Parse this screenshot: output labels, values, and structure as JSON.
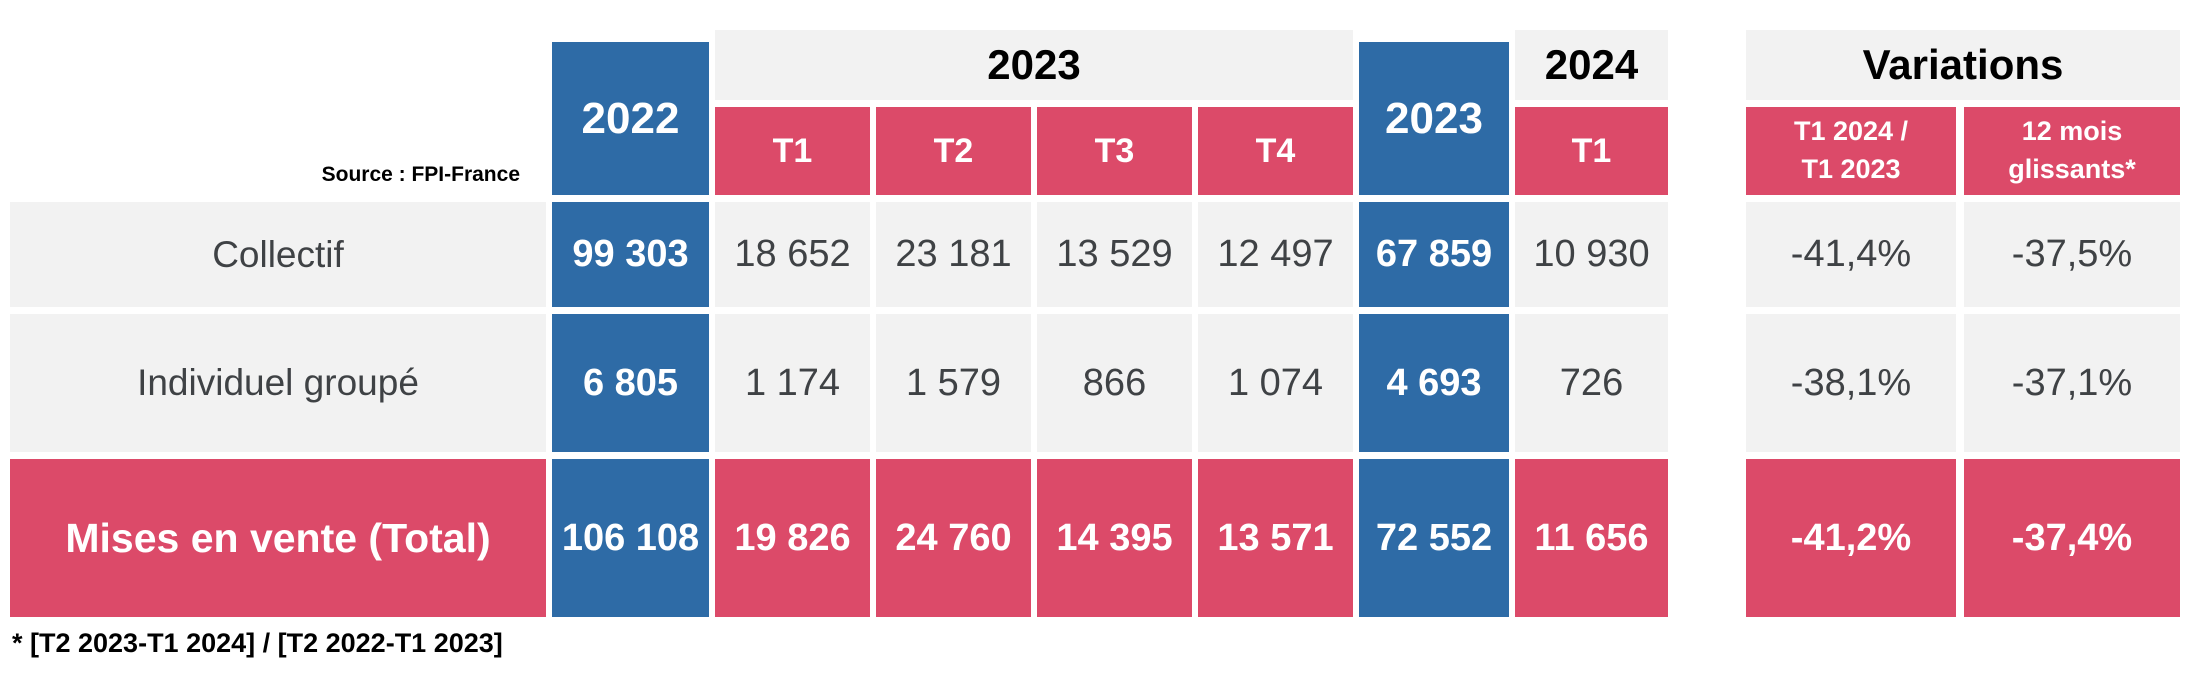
{
  "colors": {
    "blue": "#2E6BA6",
    "red": "#DC4A69",
    "cell_gray": "#F2F2F2",
    "text_dark": "#3F4245"
  },
  "source_label": "Source : FPI-France",
  "footnote": "* [T2 2023-T1 2024] / [T2 2022-T1 2023]",
  "header": {
    "year_2022": "2022",
    "year_2023_group": "2023",
    "year_2023_total": "2023",
    "year_2024": "2024",
    "quarters": [
      "T1",
      "T2",
      "T3",
      "T4"
    ],
    "t1_2024": "T1",
    "variations_title": "Variations",
    "variation_col_1": "T1 2024  /\nT1 2023",
    "variation_col_2": "12 mois\nglissants*"
  },
  "rows": [
    {
      "label": "Collectif",
      "v": [
        "99 303",
        "18 652",
        "23 181",
        "13 529",
        "12 497",
        "67 859",
        "10 930",
        "-41,4%",
        "-37,5%"
      ]
    },
    {
      "label": "Individuel groupé",
      "v": [
        "6 805",
        "1 174",
        "1 579",
        "866",
        "1 074",
        "4 693",
        "726",
        "-38,1%",
        "-37,1%"
      ]
    },
    {
      "label": "Mises en vente (Total)",
      "v": [
        "106 108",
        "19 826",
        "24 760",
        "14 395",
        "13 571",
        "72 552",
        "11 656",
        "-41,2%",
        "-37,4%"
      ]
    }
  ],
  "chart_data": {
    "type": "table",
    "source": "Source : FPI-France",
    "footnote": "* [T2 2023-T1 2024] / [T2 2022-T1 2023]",
    "column_groups": [
      "2022",
      "2023 (T1, T2, T3, T4)",
      "2023",
      "2024 (T1)",
      "Variations"
    ],
    "columns": [
      "2022",
      "2023 T1",
      "2023 T2",
      "2023 T3",
      "2023 T4",
      "2023",
      "2024 T1",
      "T1 2024 / T1 2023",
      "12 mois glissants*"
    ],
    "rows": [
      {
        "label": "Collectif",
        "values": [
          99303,
          18652,
          23181,
          13529,
          12497,
          67859,
          10930
        ],
        "variations": [
          "-41,4%",
          "-37,5%"
        ]
      },
      {
        "label": "Individuel groupé",
        "values": [
          6805,
          1174,
          1579,
          866,
          1074,
          4693,
          726
        ],
        "variations": [
          "-38,1%",
          "-37,1%"
        ]
      },
      {
        "label": "Mises en vente (Total)",
        "values": [
          106108,
          19826,
          24760,
          14395,
          13571,
          72552,
          11656
        ],
        "variations": [
          "-41,2%",
          "-37,4%"
        ]
      }
    ]
  }
}
